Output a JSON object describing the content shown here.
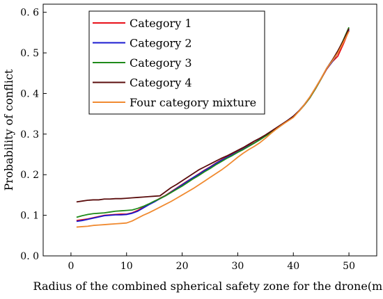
{
  "chart_data": {
    "type": "line",
    "xlabel": "Radius of the combined spherical safety zone for the drone(m)",
    "ylabel": "Probability of conflict",
    "xlim": [
      -5,
      55
    ],
    "ylim": [
      0.0,
      0.62
    ],
    "xticks": [
      0,
      10,
      20,
      30,
      40,
      50
    ],
    "yticks": [
      0.0,
      0.1,
      0.2,
      0.3,
      0.4,
      0.5,
      0.6
    ],
    "xtick_labels": [
      "0",
      "10",
      "20",
      "30",
      "40",
      "50"
    ],
    "ytick_labels": [
      "0. 0",
      "0. 1",
      "0. 2",
      "0. 3",
      "0. 4",
      "0. 5",
      "0. 6"
    ],
    "legend_position": "top-left",
    "grid": false,
    "series": [
      {
        "name": "Category 1",
        "color": "#e8101a",
        "x": [
          1,
          2,
          3,
          4,
          5,
          6,
          7,
          8,
          9,
          10,
          11,
          12,
          13,
          14,
          15,
          16,
          17,
          18,
          19,
          20,
          21,
          22,
          23,
          24,
          25,
          26,
          27,
          28,
          29,
          30,
          31,
          32,
          33,
          34,
          35,
          36,
          37,
          38,
          39,
          40,
          41,
          42,
          43,
          44,
          45,
          46,
          47,
          48,
          49,
          50
        ],
        "y": [
          0.087,
          0.089,
          0.091,
          0.094,
          0.097,
          0.1,
          0.101,
          0.102,
          0.103,
          0.103,
          0.106,
          0.112,
          0.12,
          0.127,
          0.134,
          0.142,
          0.149,
          0.158,
          0.167,
          0.176,
          0.185,
          0.193,
          0.202,
          0.211,
          0.219,
          0.228,
          0.236,
          0.243,
          0.25,
          0.257,
          0.264,
          0.272,
          0.279,
          0.287,
          0.296,
          0.305,
          0.314,
          0.323,
          0.333,
          0.343,
          0.356,
          0.372,
          0.39,
          0.412,
          0.436,
          0.46,
          0.478,
          0.492,
          0.522,
          0.555
        ]
      },
      {
        "name": "Category 2",
        "color": "#1a1ad0",
        "x": [
          1,
          2,
          3,
          4,
          5,
          6,
          7,
          8,
          9,
          10,
          11,
          12,
          13,
          14,
          15,
          16,
          17,
          18,
          19,
          20,
          21,
          22,
          23,
          24,
          25,
          26,
          27,
          28,
          29,
          30,
          31,
          32,
          33,
          34,
          35,
          36,
          37,
          38,
          39,
          40,
          41,
          42,
          43,
          44,
          45,
          46,
          47,
          48,
          49,
          50
        ],
        "y": [
          0.085,
          0.087,
          0.09,
          0.093,
          0.096,
          0.099,
          0.1,
          0.101,
          0.101,
          0.102,
          0.105,
          0.11,
          0.118,
          0.126,
          0.133,
          0.141,
          0.148,
          0.157,
          0.166,
          0.175,
          0.184,
          0.193,
          0.201,
          0.21,
          0.218,
          0.227,
          0.235,
          0.242,
          0.249,
          0.256,
          0.263,
          0.271,
          0.278,
          0.287,
          0.296,
          0.305,
          0.314,
          0.324,
          0.334,
          0.344,
          0.357,
          0.373,
          0.391,
          0.413,
          0.437,
          0.461,
          0.478,
          0.5,
          0.527,
          0.558
        ]
      },
      {
        "name": "Category 3",
        "color": "#1f8a1a",
        "x": [
          1,
          2,
          3,
          4,
          5,
          6,
          7,
          8,
          9,
          10,
          11,
          12,
          13,
          14,
          15,
          16,
          17,
          18,
          19,
          20,
          21,
          22,
          23,
          24,
          25,
          26,
          27,
          28,
          29,
          30,
          31,
          32,
          33,
          34,
          35,
          36,
          37,
          38,
          39,
          40,
          41,
          42,
          43,
          44,
          45,
          46,
          47,
          48,
          49,
          50
        ],
        "y": [
          0.095,
          0.099,
          0.102,
          0.104,
          0.105,
          0.106,
          0.108,
          0.11,
          0.111,
          0.112,
          0.113,
          0.117,
          0.122,
          0.128,
          0.135,
          0.141,
          0.148,
          0.156,
          0.164,
          0.172,
          0.181,
          0.19,
          0.198,
          0.207,
          0.215,
          0.224,
          0.232,
          0.24,
          0.247,
          0.255,
          0.262,
          0.27,
          0.278,
          0.286,
          0.295,
          0.304,
          0.313,
          0.323,
          0.333,
          0.343,
          0.356,
          0.372,
          0.39,
          0.412,
          0.436,
          0.462,
          0.48,
          0.503,
          0.532,
          0.563
        ]
      },
      {
        "name": "Category 4",
        "color": "#5a0c0c",
        "x": [
          1,
          2,
          3,
          4,
          5,
          6,
          7,
          8,
          9,
          10,
          11,
          12,
          13,
          14,
          15,
          16,
          17,
          18,
          19,
          20,
          21,
          22,
          23,
          24,
          25,
          26,
          27,
          28,
          29,
          30,
          31,
          32,
          33,
          34,
          35,
          36,
          37,
          38,
          39,
          40,
          41,
          42,
          43,
          44,
          45,
          46,
          47,
          48,
          49,
          50
        ],
        "y": [
          0.133,
          0.135,
          0.137,
          0.138,
          0.138,
          0.14,
          0.14,
          0.141,
          0.141,
          0.142,
          0.143,
          0.144,
          0.145,
          0.146,
          0.147,
          0.148,
          0.158,
          0.168,
          0.176,
          0.185,
          0.194,
          0.203,
          0.212,
          0.219,
          0.226,
          0.233,
          0.24,
          0.246,
          0.253,
          0.26,
          0.267,
          0.275,
          0.283,
          0.29,
          0.298,
          0.307,
          0.316,
          0.325,
          0.334,
          0.344,
          0.357,
          0.373,
          0.392,
          0.414,
          0.437,
          0.462,
          0.482,
          0.505,
          0.53,
          0.56
        ]
      },
      {
        "name": "Four category mixture",
        "color": "#f08a30",
        "x": [
          1,
          2,
          3,
          4,
          5,
          6,
          7,
          8,
          9,
          10,
          11,
          12,
          13,
          14,
          15,
          16,
          17,
          18,
          19,
          20,
          21,
          22,
          23,
          24,
          25,
          26,
          27,
          28,
          29,
          30,
          31,
          32,
          33,
          34,
          35,
          36,
          37,
          38,
          39,
          40,
          41,
          42,
          43,
          44,
          45,
          46,
          47,
          48,
          49,
          50
        ],
        "y": [
          0.071,
          0.072,
          0.073,
          0.075,
          0.076,
          0.077,
          0.078,
          0.079,
          0.08,
          0.081,
          0.086,
          0.093,
          0.1,
          0.106,
          0.113,
          0.12,
          0.127,
          0.134,
          0.142,
          0.15,
          0.158,
          0.166,
          0.175,
          0.184,
          0.193,
          0.202,
          0.211,
          0.221,
          0.232,
          0.243,
          0.253,
          0.262,
          0.27,
          0.279,
          0.29,
          0.302,
          0.313,
          0.323,
          0.332,
          0.341,
          0.356,
          0.373,
          0.392,
          0.414,
          0.437,
          0.462,
          0.48,
          0.5,
          0.526,
          0.553
        ]
      }
    ]
  }
}
